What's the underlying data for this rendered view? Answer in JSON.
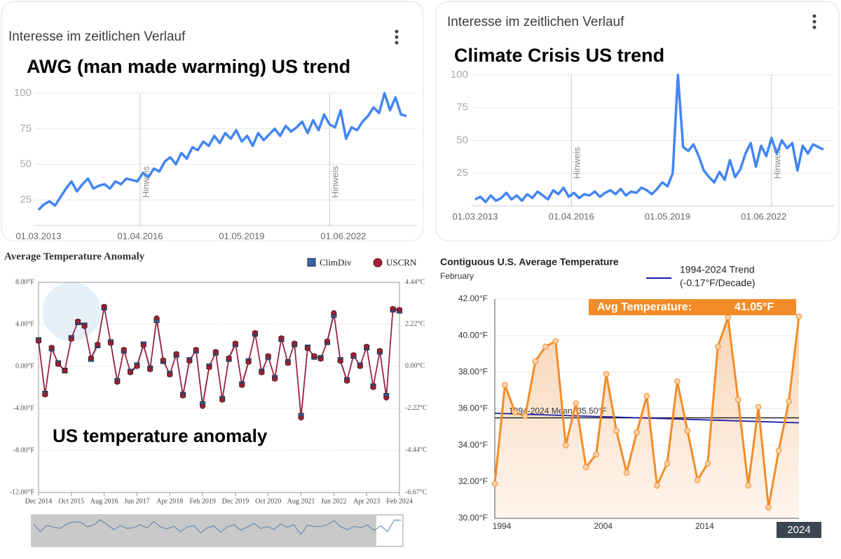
{
  "chart_data": [
    {
      "type": "line",
      "header": "Interesse im zeitlichen Verlauf",
      "title": "AWG (man made warming) US trend",
      "values": [
        18,
        22,
        24,
        21,
        27,
        33,
        38,
        31,
        36,
        40,
        33,
        35,
        36,
        33,
        38,
        36,
        40,
        39,
        38,
        44,
        41,
        47,
        45,
        52,
        55,
        50,
        58,
        54,
        62,
        60,
        66,
        63,
        70,
        65,
        72,
        68,
        74,
        66,
        70,
        63,
        72,
        67,
        71,
        75,
        70,
        77,
        73,
        76,
        80,
        72,
        81,
        74,
        85,
        78,
        76,
        88,
        68,
        76,
        74,
        80,
        84,
        90,
        86,
        100,
        88,
        97,
        85,
        84
      ],
      "color": "#4285f4",
      "xlim": [
        0,
        67
      ],
      "xticks": [
        {
          "value": 0,
          "label": "01.03.2013"
        },
        {
          "value": 18.5,
          "label": "01.04.2016"
        },
        {
          "value": 37,
          "label": "01.05.2019"
        },
        {
          "value": 55.5,
          "label": "01.06.2022"
        }
      ],
      "ylim": [
        7,
        100
      ],
      "yticks": [
        25,
        50,
        75,
        100
      ],
      "grid": true,
      "annotations": [
        {
          "x": 18.5,
          "label": "Hinweis"
        },
        {
          "x": 53,
          "label": "Hinweis"
        }
      ]
    },
    {
      "type": "line",
      "header": "Interesse im zeitlichen Verlauf",
      "title": "Climate Crisis US trend",
      "values": [
        5,
        7,
        3,
        8,
        4,
        6,
        10,
        5,
        8,
        4,
        9,
        6,
        11,
        8,
        5,
        12,
        9,
        14,
        7,
        10,
        6,
        9,
        8,
        11,
        7,
        10,
        12,
        9,
        13,
        8,
        11,
        10,
        14,
        12,
        9,
        13,
        18,
        15,
        25,
        100,
        45,
        42,
        47,
        38,
        27,
        22,
        18,
        26,
        20,
        35,
        22,
        28,
        40,
        48,
        30,
        46,
        38,
        52,
        40,
        50,
        44,
        48,
        27,
        46,
        40,
        47,
        45,
        43
      ],
      "color": "#4285f4",
      "xlim": [
        0,
        67
      ],
      "xticks": [
        {
          "value": 0,
          "label": "01.03.2013"
        },
        {
          "value": 18.5,
          "label": "01.04.2016"
        },
        {
          "value": 37,
          "label": "01.05.2019"
        },
        {
          "value": 55.5,
          "label": "01.06.2022"
        }
      ],
      "ylim": [
        0,
        100
      ],
      "yticks": [
        25,
        50,
        75,
        100
      ],
      "grid": true,
      "annotations": [
        {
          "x": 18.5,
          "label": "Hinweis"
        },
        {
          "x": 57,
          "label": "Hinweis"
        }
      ]
    },
    {
      "type": "line",
      "title": "Average Temperature Anomaly",
      "annotation": "US temperature anomaly",
      "categories": [
        "Dec 2014",
        null,
        null,
        null,
        null,
        "Oct 2015",
        null,
        null,
        null,
        null,
        "Aug 2016",
        null,
        null,
        null,
        null,
        "Jun 2017",
        null,
        null,
        null,
        null,
        "Apr 2018",
        null,
        null,
        null,
        null,
        "Feb 2019",
        null,
        null,
        null,
        null,
        "Dec 2019",
        null,
        null,
        null,
        null,
        "Oct 2020",
        null,
        null,
        null,
        null,
        "Aug 2021",
        null,
        null,
        null,
        null,
        "Jun 2022",
        null,
        null,
        null,
        null,
        "Apr 2023",
        null,
        null,
        null,
        null,
        "Feb 2024"
      ],
      "series": [
        {
          "name": "ClimDiv",
          "color": "#3568a8",
          "marker": "square",
          "values": [
            2.5,
            -2.6,
            1.7,
            0.3,
            -0.4,
            2.7,
            4.2,
            3.9,
            0.7,
            2.0,
            5.6,
            2.3,
            -1.4,
            1.5,
            -0.5,
            0.1,
            2.1,
            -0.2,
            4.4,
            0.5,
            -0.7,
            1.1,
            -2.7,
            0.6,
            1.5,
            -3.6,
            0.0,
            1.3,
            -3.1,
            0.7,
            2.1,
            -1.7,
            0.5,
            3.1,
            -0.5,
            0.9,
            -1.1,
            2.6,
            0.4,
            2.1,
            -4.7,
            1.8,
            0.9,
            0.8,
            2.3,
            4.9,
            0.6,
            -1.3,
            1.0,
            0.1,
            1.8,
            -1.9,
            1.4,
            -2.8,
            5.4,
            5.3
          ]
        },
        {
          "name": "USCRN",
          "color": "#a51d38",
          "marker": "circle",
          "values": [
            2.4,
            -2.7,
            1.8,
            0.2,
            -0.4,
            2.6,
            4.3,
            3.8,
            0.8,
            2.1,
            5.7,
            2.2,
            -1.5,
            1.6,
            -0.6,
            0.0,
            2.0,
            -0.3,
            4.6,
            0.6,
            -0.8,
            1.2,
            -2.8,
            0.5,
            1.6,
            -3.8,
            -0.1,
            1.4,
            -3.2,
            0.8,
            2.2,
            -1.8,
            0.4,
            3.2,
            -0.6,
            1.0,
            -1.2,
            2.7,
            0.3,
            2.2,
            -4.9,
            1.7,
            1.0,
            0.7,
            2.4,
            5.1,
            0.5,
            -1.4,
            1.1,
            0.0,
            1.9,
            -2.0,
            1.5,
            -3.0,
            5.5,
            5.4
          ]
        }
      ],
      "ylim": [
        -12,
        8
      ],
      "yticks": [
        {
          "value": 8,
          "label": "8.00°F"
        },
        {
          "value": 4,
          "label": "4.00°F"
        },
        {
          "value": 0,
          "label": "0.00°F"
        },
        {
          "value": -4,
          "label": "-4.00°F"
        },
        {
          "value": -8,
          "label": "-8.00°F"
        },
        {
          "value": -12,
          "label": "-12.00°F"
        }
      ],
      "y2lim": [
        -6.67,
        4.44
      ],
      "y2ticks": [
        {
          "value": 4.44,
          "label": "4.44°C"
        },
        {
          "value": 2.22,
          "label": "2.22°C"
        },
        {
          "value": 0,
          "label": "0.00°C"
        },
        {
          "value": -2.22,
          "label": "-2.22°C"
        },
        {
          "value": -4.44,
          "label": "-4.44°C"
        },
        {
          "value": -6.67,
          "label": "-6.67°C"
        }
      ],
      "grid": true
    },
    {
      "type": "area",
      "title": "Contiguous U.S. Average Temperature",
      "subtitle": "February",
      "x": [
        1994,
        1995,
        1996,
        1997,
        1998,
        1999,
        2000,
        2001,
        2002,
        2003,
        2004,
        2005,
        2006,
        2007,
        2008,
        2009,
        2010,
        2011,
        2012,
        2013,
        2014,
        2015,
        2016,
        2017,
        2018,
        2019,
        2020,
        2021,
        2022,
        2023,
        2024
      ],
      "values": [
        31.9,
        37.3,
        35.8,
        35.6,
        38.6,
        39.4,
        39.7,
        34.0,
        36.3,
        32.8,
        33.5,
        37.9,
        34.8,
        32.5,
        34.7,
        36.7,
        31.8,
        33.0,
        37.5,
        34.8,
        32.1,
        33.0,
        39.4,
        41.0,
        36.5,
        31.8,
        36.1,
        30.6,
        33.7,
        36.4,
        41.05
      ],
      "color": "#f28c28",
      "xlim": [
        1994,
        2024
      ],
      "xticks": [
        1994,
        2004,
        2014,
        2024
      ],
      "ylim": [
        30,
        42
      ],
      "yticks": [
        {
          "value": 30,
          "label": "30.00°F"
        },
        {
          "value": 32,
          "label": "32.00°F"
        },
        {
          "value": 34,
          "label": "34.00°F"
        },
        {
          "value": 36,
          "label": "36.00°F"
        },
        {
          "value": 38,
          "label": "38.00°F"
        },
        {
          "value": 40,
          "label": "40.00°F"
        },
        {
          "value": 42,
          "label": "42.00°F"
        }
      ],
      "grid": true,
      "mean": {
        "value": 35.5,
        "label": "1994-2024 Mean: 35.50°F"
      },
      "trend": {
        "name": "1994-2024 Trend",
        "note": "(-0.17°F/Decade)",
        "color": "#1c1ca8",
        "values": [
          35.75,
          35.23
        ]
      },
      "tooltip": {
        "label": "Avg Temperature:",
        "value": "41.05°F"
      }
    }
  ]
}
